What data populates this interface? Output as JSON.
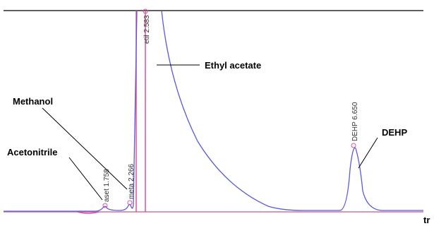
{
  "peaks": [
    {
      "label": "aset 1.758"
    },
    {
      "label": "meta 2.266"
    },
    {
      "label": "etil 2.583"
    },
    {
      "label": "DEHP 6.650"
    }
  ],
  "annotations": [
    "Acetonitrile",
    "Methanol",
    "Ethyl acetate",
    "DEHP"
  ],
  "x_axis_label": "tr"
}
